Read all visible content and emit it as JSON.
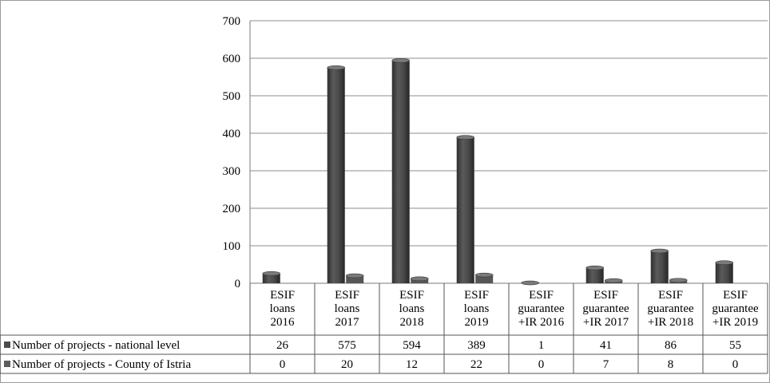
{
  "chart_data": {
    "type": "bar",
    "categories": [
      [
        "ESIF",
        "loans",
        "2016"
      ],
      [
        "ESIF",
        "loans",
        "2017"
      ],
      [
        "ESIF",
        "loans",
        "2018"
      ],
      [
        "ESIF",
        "loans",
        "2019"
      ],
      [
        "ESIF",
        "guarantee",
        "+IR 2016"
      ],
      [
        "ESIF",
        "guarantee",
        "+IR 2017"
      ],
      [
        "ESIF",
        "guarantee",
        "+IR 2018"
      ],
      [
        "ESIF",
        "guarantee",
        "+IR 2019"
      ]
    ],
    "series": [
      {
        "name": "Number of projects - national level",
        "values": [
          26,
          575,
          594,
          389,
          1,
          41,
          86,
          55
        ],
        "color": "#4d4d4d"
      },
      {
        "name": "Number of projects - County of Istria",
        "values": [
          0,
          20,
          12,
          22,
          0,
          7,
          8,
          0
        ],
        "color": "#5e5e5e"
      }
    ],
    "y_ticks": [
      0,
      100,
      200,
      300,
      400,
      500,
      600,
      700
    ],
    "ylim": [
      0,
      700
    ],
    "grid": true,
    "legend": "data-table-left",
    "style": "3d-cylinder",
    "title": "",
    "xlabel": "",
    "ylabel": ""
  }
}
